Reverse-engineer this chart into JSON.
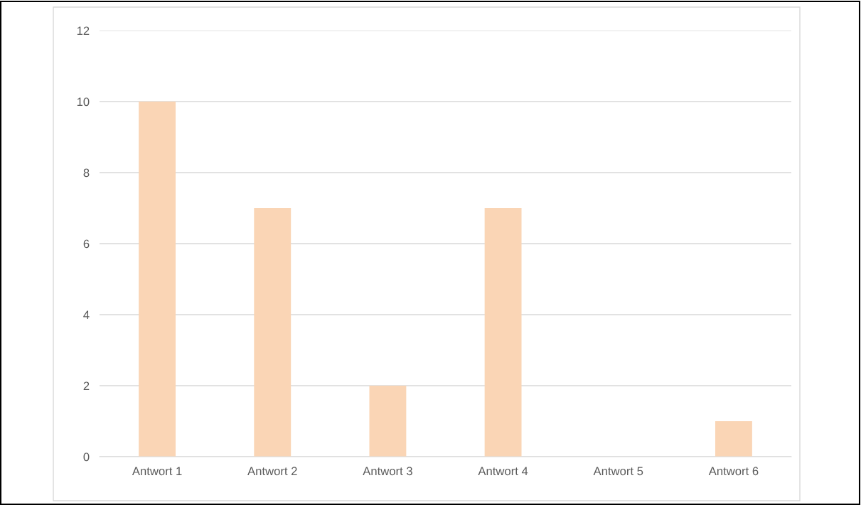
{
  "chart_data": {
    "type": "bar",
    "categories": [
      "Antwort 1",
      "Antwort 2",
      "Antwort 3",
      "Antwort 4",
      "Antwort 5",
      "Antwort 6"
    ],
    "values": [
      10,
      7,
      2,
      7,
      0,
      1
    ],
    "color": "#fad5b5",
    "ylim": [
      0,
      12
    ],
    "yticks": [
      0,
      2,
      4,
      6,
      8,
      10,
      12
    ],
    "grid": "y",
    "legend": false
  }
}
